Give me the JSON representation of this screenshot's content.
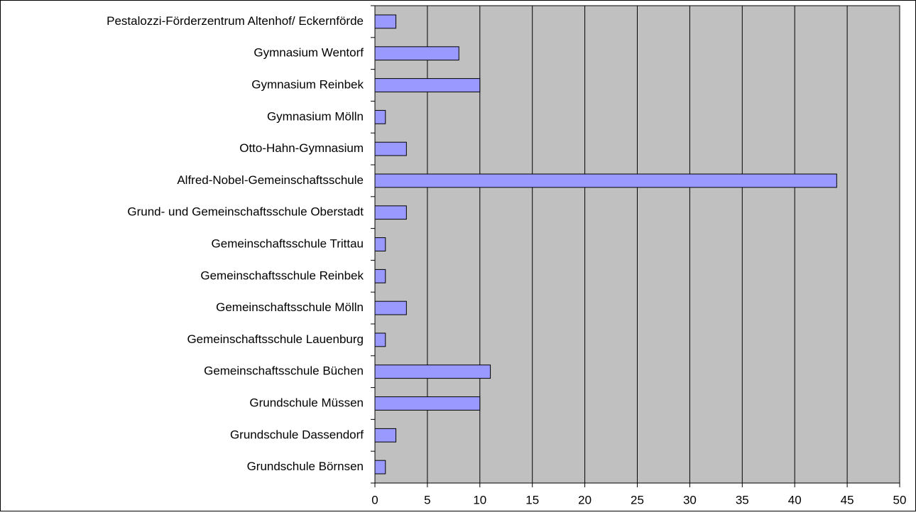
{
  "chart_data": {
    "type": "bar",
    "categories": [
      "Pestalozzi-Förderzentrum Altenhof/ Eckernförde",
      "Gymnasium Wentorf",
      "Gymnasium Reinbek",
      "Gymnasium Mölln",
      "Otto-Hahn-Gymnasium",
      "Alfred-Nobel-Gemeinschaftsschule",
      "Grund- und Gemeinschaftsschule Oberstadt",
      "Gemeinschaftsschule Trittau",
      "Gemeinschaftsschule Reinbek",
      "Gemeinschaftsschule Mölln",
      "Gemeinschaftsschule Lauenburg",
      "Gemeinschaftsschule Büchen",
      "Grundschule Müssen",
      "Grundschule Dassendorf",
      "Grundschule Börnsen"
    ],
    "values": [
      2,
      8,
      10,
      1,
      3,
      44,
      3,
      1,
      1,
      3,
      1,
      11,
      10,
      2,
      1
    ],
    "color": "#9999ff",
    "xlim": [
      0,
      50
    ],
    "xticks": [
      0,
      5,
      10,
      15,
      20,
      25,
      30,
      35,
      40,
      45,
      50
    ],
    "grid": true
  }
}
